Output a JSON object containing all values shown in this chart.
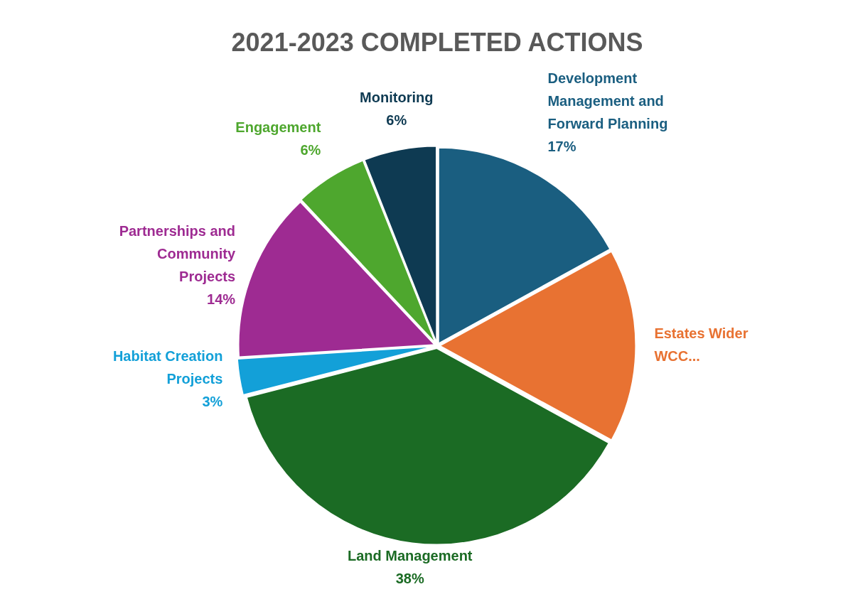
{
  "chart_data": {
    "type": "pie",
    "title": "2021-2023 COMPLETED ACTIONS",
    "categories": [
      "Development Management and Forward Planning",
      "Estates Wider WCC...",
      "Land Management",
      "Habitat Creation Projects",
      "Partnerships and Community Projects",
      "Engagement",
      "Monitoring"
    ],
    "values": [
      17,
      16,
      38,
      3,
      14,
      6,
      6
    ],
    "colors": [
      "#1a5e80",
      "#e87232",
      "#1b6b24",
      "#13a0d8",
      "#9e2b92",
      "#4ea72e",
      "#0e3a52"
    ],
    "value_labels": [
      "17%",
      null,
      "38%",
      "3%",
      "14%",
      "6%",
      "6%"
    ],
    "legend": false
  }
}
